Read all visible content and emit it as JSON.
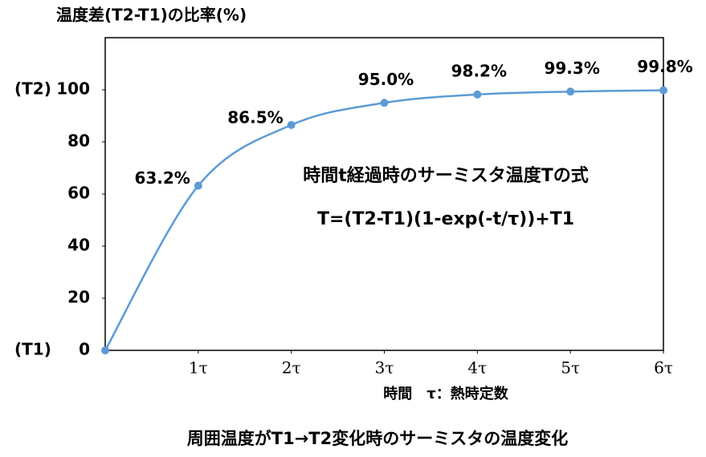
{
  "chart_data": {
    "type": "line",
    "y_axis_title": "温度差(T2-T1)の比率(%)",
    "x_axis_title": "時間　τ：熱時定数",
    "caption": "周囲温度がT1→T2変化時のサーミスタの温度変化",
    "annotations": [
      "時間t経過時のサーミスタ温度Tの式",
      "T=(T2-T1)(1-exp(-t/τ))+T1"
    ],
    "y_tick_annotations": [
      {
        "value": 0,
        "label": "(T1)"
      },
      {
        "value": 100,
        "label": "(T2)"
      }
    ],
    "x": [
      0,
      1,
      2,
      3,
      4,
      5,
      6
    ],
    "series": [
      {
        "color": "#5b9bd5",
        "values": [
          0,
          63.2,
          86.5,
          95.0,
          98.2,
          99.3,
          99.8
        ],
        "value_labels": [
          null,
          "63.2%",
          "86.5%",
          "95.0%",
          "98.2%",
          "99.3%",
          "99.8%"
        ]
      }
    ],
    "xlim": [
      0,
      6
    ],
    "xticks": [
      {
        "value": 1,
        "label": "1τ"
      },
      {
        "value": 2,
        "label": "2τ"
      },
      {
        "value": 3,
        "label": "3τ"
      },
      {
        "value": 4,
        "label": "4τ"
      },
      {
        "value": 5,
        "label": "5τ"
      },
      {
        "value": 6,
        "label": "6τ"
      }
    ],
    "ylim": [
      0,
      120
    ],
    "yticks": [
      0,
      20,
      40,
      60,
      80,
      100
    ],
    "grid": false
  }
}
